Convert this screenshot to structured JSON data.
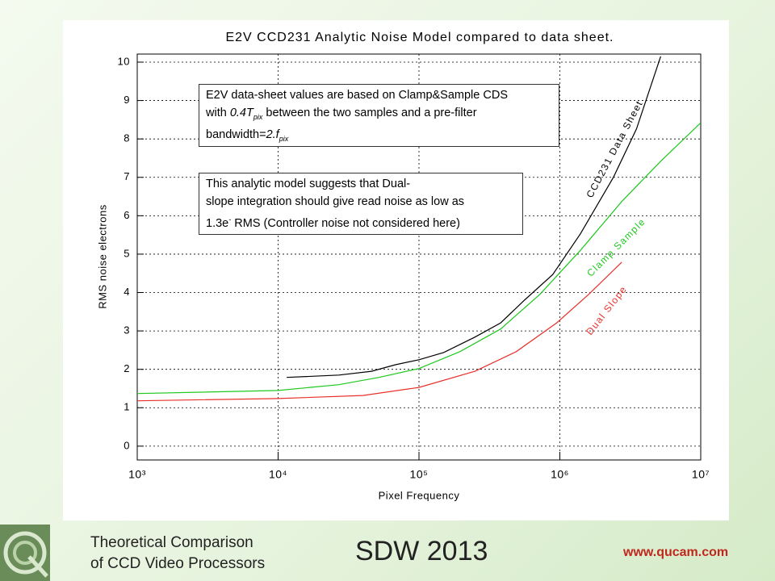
{
  "chart_data": {
    "type": "line",
    "title": "E2V CCD231 Analytic Noise Model compared to data sheet.",
    "x_label": "Pixel Frequency",
    "y_label": "RMS noise electrons",
    "log_x": true,
    "grid": true,
    "xlim": [
      1000,
      10000000
    ],
    "ylim": [
      -0.36,
      10.21
    ],
    "xticks": [
      {
        "value": 1000,
        "label": "10³"
      },
      {
        "value": 10000,
        "label": "10⁴"
      },
      {
        "value": 100000,
        "label": "10⁵"
      },
      {
        "value": 1000000,
        "label": "10⁶"
      },
      {
        "value": 10000000,
        "label": "10⁷"
      }
    ],
    "yticks": [
      0,
      1,
      2,
      3,
      4,
      5,
      6,
      7,
      8,
      9,
      10
    ],
    "series": [
      {
        "name": "CCD231 Data Sheet",
        "color": "#000000",
        "x": [
          11500,
          27000,
          46000,
          68000,
          100000,
          150000,
          250000,
          380000,
          560000,
          890000,
          1400000,
          2400000,
          3500000,
          5200000
        ],
        "values": [
          1.79,
          1.85,
          1.95,
          2.12,
          2.25,
          2.44,
          2.84,
          3.21,
          3.8,
          4.47,
          5.53,
          7.0,
          8.26,
          10.15
        ]
      },
      {
        "name": "Clamp Sample",
        "color": "#1ec81e",
        "x": [
          1000,
          10000,
          27000,
          52000,
          100000,
          195000,
          380000,
          720000,
          1400000,
          2750000,
          5200000,
          10000000
        ],
        "values": [
          1.37,
          1.45,
          1.6,
          1.79,
          2.02,
          2.46,
          3.05,
          3.95,
          5.1,
          6.37,
          7.42,
          8.42
        ]
      },
      {
        "name": "Dual Slope",
        "color": "#e8302a",
        "x": [
          1000,
          10000,
          40000,
          100000,
          250000,
          490000,
          950000,
          1600000,
          2750000
        ],
        "values": [
          1.18,
          1.24,
          1.32,
          1.53,
          1.95,
          2.46,
          3.21,
          3.95,
          4.79
        ]
      }
    ],
    "annotations": [
      {
        "lines": [
          [
            {
              "text": "E2V data-sheet values are based on Clamp&Sample CDS"
            }
          ],
          [
            {
              "text": "with "
            },
            {
              "text": "0.4T",
              "style": "italic"
            },
            {
              "text": "pix",
              "script": "sub"
            },
            {
              "text": " between the two samples and a pre-filter"
            }
          ],
          [
            {
              "text": "bandwidth="
            },
            {
              "text": "2.f",
              "style": "italic"
            },
            {
              "text": "pix",
              "script": "sub"
            }
          ]
        ]
      },
      {
        "lines": [
          [
            {
              "text": "This analytic model suggests that Dual-"
            }
          ],
          [
            {
              "text": "slope integration should give read noise as low as"
            }
          ],
          [
            {
              "text": "1.3e"
            },
            {
              "text": "-",
              "script": "sup"
            },
            {
              "text": " RMS (Controller noise not considered here)"
            }
          ]
        ]
      }
    ]
  },
  "footer": {
    "subtitle_lines": [
      "Theoretical Comparison",
      "of CCD Video Processors"
    ],
    "event": "SDW 2013",
    "url": "www.qucam.com"
  }
}
